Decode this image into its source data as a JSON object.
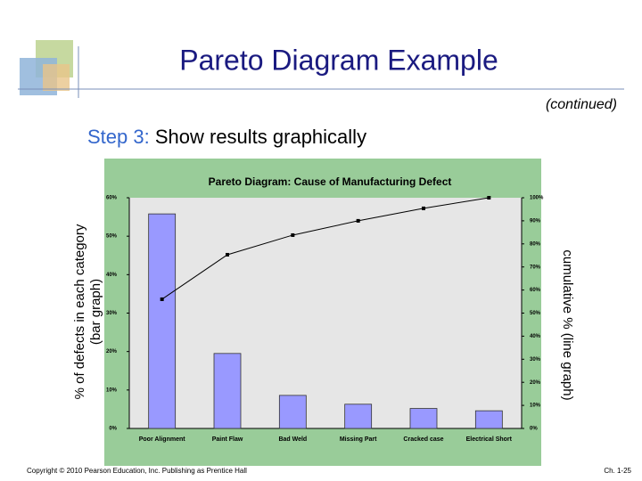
{
  "slide": {
    "title": "Pareto Diagram Example",
    "subtitle": "(continued)",
    "step_label": "Step 3:",
    "step_text": "Show results graphically",
    "footer": "Copyright © 2010 Pearson Education, Inc. Publishing as Prentice Hall",
    "page": "Ch. 1-25"
  },
  "chart_data": {
    "type": "pareto",
    "title": "Pareto Diagram: Cause of Manufacturing Defect",
    "ylabel": [
      "% of defects in each category",
      "(bar graph)"
    ],
    "y2label": "cumulative % (line graph)",
    "categories": [
      "Poor Alignment",
      "Paint Flaw",
      "Bad Weld",
      "Missing Part",
      "Cracked case",
      "Electrical Short"
    ],
    "series": [
      {
        "color": "#9999ff",
        "values": [
          55.8,
          19.5,
          8.6,
          6.3,
          5.2,
          4.6
        ]
      },
      {
        "color": "#000000",
        "axis": "y2",
        "values": [
          56,
          75.3,
          83.8,
          90,
          95.4,
          100
        ]
      }
    ],
    "ylim": [
      0,
      60
    ],
    "yticks": [
      {
        "value": 0,
        "label": "0%"
      },
      {
        "value": 10,
        "label": "10%"
      },
      {
        "value": 20,
        "label": "20%"
      },
      {
        "value": 30,
        "label": "30%"
      },
      {
        "value": 40,
        "label": "40%"
      },
      {
        "value": 50,
        "label": "50%"
      },
      {
        "value": 60,
        "label": "60%"
      }
    ],
    "y2lim": [
      0,
      100
    ],
    "y2ticks": [
      {
        "value": 0,
        "label": "0%"
      },
      {
        "value": 10,
        "label": "10%"
      },
      {
        "value": 20,
        "label": "20%"
      },
      {
        "value": 30,
        "label": "30%"
      },
      {
        "value": 40,
        "label": "40%"
      },
      {
        "value": 50,
        "label": "50%"
      },
      {
        "value": 60,
        "label": "60%"
      },
      {
        "value": 70,
        "label": "70%"
      },
      {
        "value": 80,
        "label": "80%"
      },
      {
        "value": 90,
        "label": "90%"
      },
      {
        "value": 100,
        "label": "100%"
      }
    ],
    "grid": false
  }
}
